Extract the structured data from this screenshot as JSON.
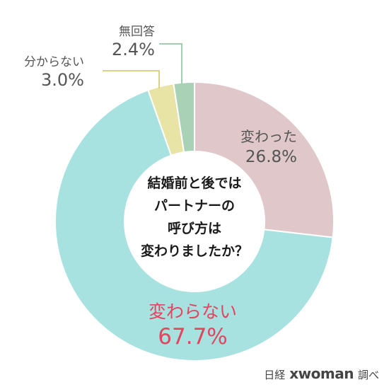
{
  "chart_data": {
    "type": "pie",
    "title": "",
    "center_text": [
      "結婚前と後では",
      "パートナーの",
      "呼び方は",
      "変わりましたか？"
    ],
    "slices": [
      {
        "label": "変わった",
        "value": 26.8,
        "value_label": "26.8%",
        "color": "#e0c8ca"
      },
      {
        "label": "変わらない",
        "value": 67.7,
        "value_label": "67.7%",
        "color": "#a8e2e0"
      },
      {
        "label": "分からない",
        "value": 3.0,
        "value_label": "3.0%",
        "color": "#e8e4a6"
      },
      {
        "label": "無回答",
        "value": 2.4,
        "value_label": "2.4%",
        "color": "#a8d1b5"
      }
    ],
    "start_angle_deg": 0,
    "direction": "clockwise",
    "donut": true
  },
  "source": {
    "prefix": "日経",
    "brand": "xwoman",
    "suffix": "調べ"
  }
}
